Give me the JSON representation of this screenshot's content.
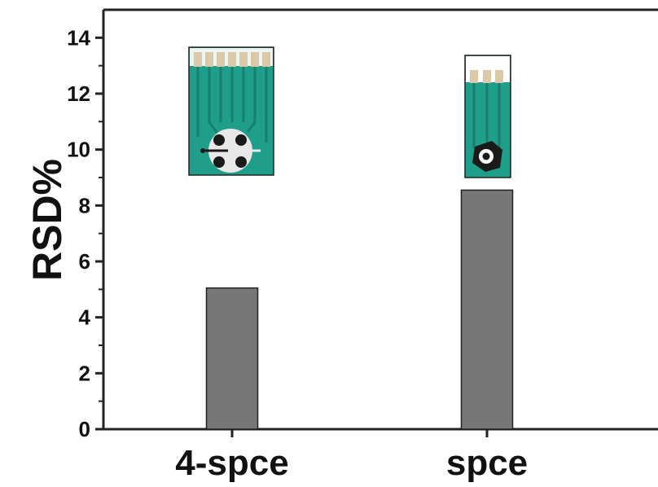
{
  "chart_data": {
    "type": "bar",
    "categories": [
      "4-spce",
      "spce"
    ],
    "values": [
      5.05,
      8.55
    ],
    "xlabel": "",
    "ylabel": "RSD%",
    "ylim": [
      0,
      15
    ],
    "yticks": [
      0,
      2,
      4,
      6,
      8,
      10,
      12,
      14
    ],
    "grid": false,
    "legend": "none",
    "bar_color": "#777777",
    "bar_edge_color": "#222222"
  },
  "insets": [
    {
      "name": "4-spce-electrode-photo",
      "colors": {
        "substrate": "#1f9e8a",
        "contacts": "#d9c9a8",
        "ink": "#1a1a1a",
        "disc": "#e8e8e8"
      }
    },
    {
      "name": "spce-electrode-photo",
      "colors": {
        "substrate": "#1f9e8a",
        "contacts": "#d9c9a8",
        "ink": "#1a1a1a",
        "disc": "#ffffff"
      }
    }
  ]
}
